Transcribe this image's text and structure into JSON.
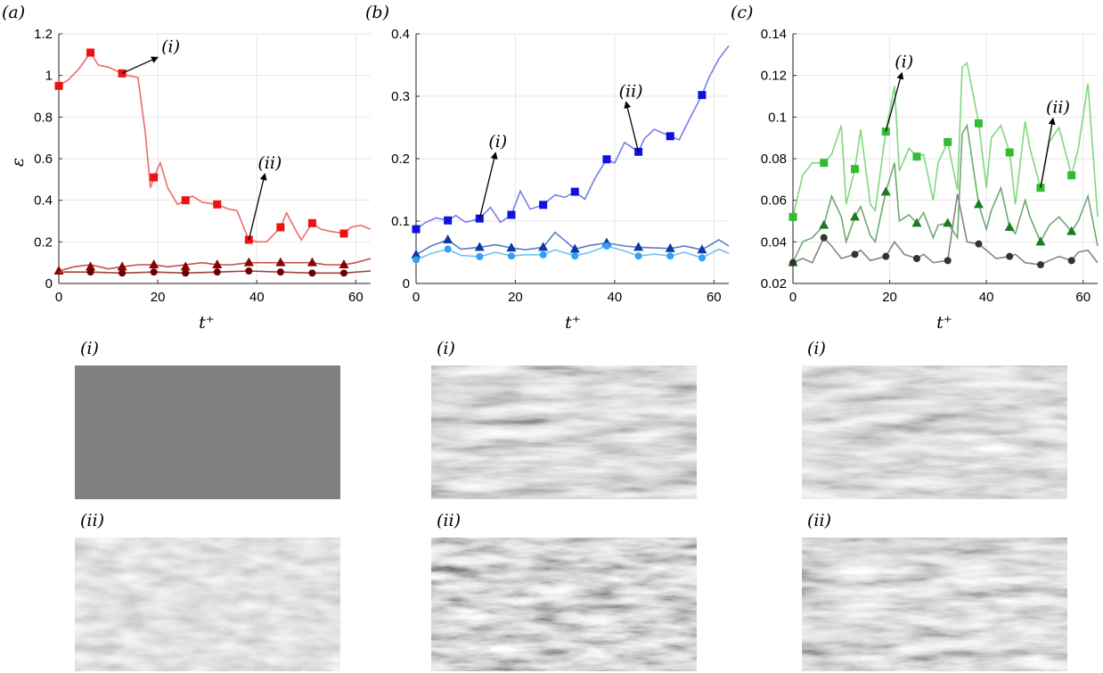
{
  "panels": [
    {
      "label": "(a)",
      "ylabel": "ε",
      "xlabel": "t⁺",
      "ylim": [
        0,
        1.2
      ],
      "yticks": [
        "0",
        "0.2",
        "0.4",
        "0.6",
        "0.8",
        "1",
        "1.2"
      ],
      "xlim": [
        0,
        63
      ],
      "xticks": [
        "0",
        "20",
        "40",
        "60"
      ],
      "annotations": [
        "(i)",
        "(ii)"
      ],
      "images": {
        "i_label": "(i)",
        "ii_label": "(ii)"
      }
    },
    {
      "label": "(b)",
      "ylabel": "",
      "xlabel": "t⁺",
      "ylim": [
        0,
        0.4
      ],
      "yticks": [
        "0",
        "0.1",
        "0.2",
        "0.3",
        "0.4"
      ],
      "xlim": [
        0,
        63
      ],
      "xticks": [
        "0",
        "20",
        "40",
        "60"
      ],
      "annotations": [
        "(i)",
        "(ii)"
      ],
      "images": {
        "i_label": "(i)",
        "ii_label": "(ii)"
      }
    },
    {
      "label": "(c)",
      "ylabel": "",
      "xlabel": "t⁺",
      "ylim": [
        0.02,
        0.14
      ],
      "yticks": [
        "0.02",
        "0.04",
        "0.06",
        "0.08",
        "0.1",
        "0.12",
        "0.14"
      ],
      "xlim": [
        0,
        63
      ],
      "xticks": [
        "0",
        "20",
        "40",
        "60"
      ],
      "annotations": [
        "(i)",
        "(ii)"
      ],
      "images": {
        "i_label": "(i)",
        "ii_label": "(ii)"
      }
    }
  ],
  "chart_data": [
    {
      "type": "line",
      "xlim": [
        0,
        63
      ],
      "ylim": [
        0,
        1.2
      ],
      "series": [
        {
          "marker": "square",
          "color": "#ee1111",
          "line_color": "#f06a6a",
          "x": [
            0,
            2,
            4,
            6.4,
            8,
            10,
            12.8,
            14,
            16,
            17.5,
            18.5,
            19.2,
            20.5,
            22,
            24,
            25.6,
            27,
            29,
            32,
            34,
            36,
            38.4,
            40,
            42,
            44.8,
            46,
            48,
            49,
            51.2,
            53,
            55,
            57.6,
            59,
            61,
            63
          ],
          "y": [
            0.95,
            0.98,
            1.03,
            1.11,
            1.05,
            1.04,
            1.01,
            1.0,
            0.99,
            0.72,
            0.46,
            0.51,
            0.58,
            0.46,
            0.38,
            0.4,
            0.42,
            0.39,
            0.38,
            0.36,
            0.35,
            0.21,
            0.2,
            0.2,
            0.27,
            0.34,
            0.25,
            0.21,
            0.29,
            0.26,
            0.25,
            0.24,
            0.27,
            0.28,
            0.26
          ],
          "marker_x": [
            0,
            6.4,
            12.8,
            19.2,
            25.6,
            32,
            38.4,
            44.8,
            51.2,
            57.6
          ],
          "marker_y": [
            0.95,
            1.11,
            1.01,
            0.51,
            0.4,
            0.38,
            0.21,
            0.27,
            0.29,
            0.24
          ]
        },
        {
          "marker": "triangle",
          "color": "#8b0000",
          "line_color": "#c05050",
          "x": [
            0,
            3,
            6.4,
            10,
            12.8,
            16,
            19.2,
            22,
            25.6,
            29,
            32,
            35,
            38.4,
            42,
            44.8,
            48,
            51.2,
            54,
            57.6,
            60,
            63
          ],
          "y": [
            0.06,
            0.08,
            0.09,
            0.07,
            0.08,
            0.09,
            0.09,
            0.08,
            0.09,
            0.1,
            0.09,
            0.09,
            0.1,
            0.1,
            0.1,
            0.1,
            0.1,
            0.09,
            0.09,
            0.1,
            0.12
          ],
          "marker_x": [
            0,
            6.4,
            12.8,
            19.2,
            25.6,
            32,
            38.4,
            44.8,
            51.2,
            57.6
          ],
          "marker_y": [
            0.06,
            0.08,
            0.08,
            0.09,
            0.08,
            0.09,
            0.1,
            0.1,
            0.1,
            0.09
          ]
        },
        {
          "marker": "circle",
          "color": "#6b0000",
          "line_color": "#a04040",
          "x": [
            0,
            6.4,
            12.8,
            19.2,
            25.6,
            32,
            38.4,
            44.8,
            51.2,
            57.6,
            63
          ],
          "y": [
            0.055,
            0.055,
            0.05,
            0.055,
            0.05,
            0.055,
            0.06,
            0.055,
            0.05,
            0.05,
            0.06
          ],
          "marker_x": [
            6.4,
            12.8,
            19.2,
            25.6,
            32,
            38.4,
            44.8,
            51.2,
            57.6
          ],
          "marker_y": [
            0.055,
            0.05,
            0.055,
            0.05,
            0.055,
            0.06,
            0.055,
            0.05,
            0.05
          ]
        }
      ],
      "annotations": [
        {
          "label": "(i)",
          "x": 12.8,
          "y": 1.01
        },
        {
          "label": "(ii)",
          "x": 38.4,
          "y": 0.21
        }
      ]
    },
    {
      "type": "line",
      "xlim": [
        0,
        63
      ],
      "ylim": [
        0,
        0.4
      ],
      "series": [
        {
          "marker": "square",
          "color": "#1010e0",
          "line_color": "#7a7aea",
          "x": [
            0,
            2,
            4,
            6.4,
            8,
            10,
            12.8,
            15,
            17,
            19.2,
            21,
            23,
            25.6,
            28,
            30,
            32,
            34,
            36,
            38.4,
            40,
            42,
            44.8,
            46,
            48,
            51.2,
            53,
            55,
            57.6,
            59,
            61,
            63
          ],
          "y": [
            0.087,
            0.098,
            0.105,
            0.101,
            0.109,
            0.098,
            0.104,
            0.122,
            0.098,
            0.11,
            0.148,
            0.119,
            0.126,
            0.142,
            0.138,
            0.147,
            0.135,
            0.168,
            0.199,
            0.193,
            0.226,
            0.211,
            0.232,
            0.247,
            0.236,
            0.23,
            0.262,
            0.302,
            0.33,
            0.36,
            0.381
          ],
          "marker_x": [
            0,
            6.4,
            12.8,
            19.2,
            25.6,
            32,
            38.4,
            44.8,
            51.2,
            57.6
          ],
          "marker_y": [
            0.087,
            0.101,
            0.104,
            0.11,
            0.126,
            0.147,
            0.199,
            0.211,
            0.236,
            0.302
          ]
        },
        {
          "marker": "triangle",
          "color": "#0a3aa8",
          "line_color": "#5a7ac8",
          "x": [
            0,
            3,
            6.4,
            9,
            12.8,
            16,
            19.2,
            22,
            25.6,
            28,
            32,
            35,
            38.4,
            42,
            44.8,
            48,
            51.2,
            54,
            57.6,
            61,
            63
          ],
          "y": [
            0.046,
            0.06,
            0.07,
            0.055,
            0.058,
            0.062,
            0.057,
            0.054,
            0.058,
            0.082,
            0.055,
            0.061,
            0.065,
            0.06,
            0.058,
            0.057,
            0.056,
            0.06,
            0.054,
            0.07,
            0.06
          ],
          "marker_x": [
            0,
            6.4,
            12.8,
            19.2,
            25.6,
            32,
            38.4,
            44.8,
            51.2,
            57.6
          ],
          "marker_y": [
            0.046,
            0.07,
            0.058,
            0.057,
            0.058,
            0.055,
            0.065,
            0.058,
            0.056,
            0.054
          ]
        },
        {
          "marker": "circle",
          "color": "#30a0f0",
          "line_color": "#70c0f5",
          "x": [
            0,
            3,
            6.4,
            9,
            12.8,
            16,
            19.2,
            22,
            25.6,
            28,
            32,
            35,
            38.4,
            42,
            44.8,
            48,
            51.2,
            54,
            57.6,
            61,
            63
          ],
          "y": [
            0.038,
            0.048,
            0.055,
            0.045,
            0.043,
            0.05,
            0.044,
            0.046,
            0.046,
            0.054,
            0.044,
            0.05,
            0.06,
            0.052,
            0.044,
            0.047,
            0.044,
            0.05,
            0.041,
            0.055,
            0.048
          ],
          "marker_x": [
            0,
            6.4,
            12.8,
            19.2,
            25.6,
            32,
            38.4,
            44.8,
            51.2,
            57.6
          ],
          "marker_y": [
            0.038,
            0.055,
            0.043,
            0.044,
            0.046,
            0.044,
            0.06,
            0.044,
            0.044,
            0.041
          ]
        }
      ],
      "annotations": [
        {
          "label": "(i)",
          "x": 12.8,
          "y": 0.104
        },
        {
          "label": "(ii)",
          "x": 44.8,
          "y": 0.211
        }
      ]
    },
    {
      "type": "line",
      "xlim": [
        0,
        63
      ],
      "ylim": [
        0.02,
        0.14
      ],
      "series": [
        {
          "marker": "square",
          "color": "#33bb33",
          "line_color": "#80d880",
          "x": [
            0,
            2,
            4,
            6.4,
            8,
            10,
            11,
            12.8,
            14,
            16,
            17,
            19.2,
            21,
            22,
            24,
            25.6,
            27,
            29,
            30,
            32,
            34,
            35,
            36,
            38.4,
            40,
            41,
            43,
            44.8,
            46,
            48,
            49,
            51.2,
            53,
            55,
            57.6,
            59,
            61,
            63
          ],
          "y": [
            0.052,
            0.072,
            0.078,
            0.078,
            0.082,
            0.096,
            0.058,
            0.075,
            0.094,
            0.058,
            0.055,
            0.093,
            0.115,
            0.074,
            0.085,
            0.081,
            0.082,
            0.06,
            0.078,
            0.088,
            0.065,
            0.124,
            0.126,
            0.097,
            0.066,
            0.09,
            0.096,
            0.083,
            0.058,
            0.098,
            0.085,
            0.066,
            0.088,
            0.095,
            0.072,
            0.085,
            0.116,
            0.052
          ],
          "marker_x": [
            0,
            6.4,
            12.8,
            19.2,
            25.6,
            32,
            38.4,
            44.8,
            51.2,
            57.6
          ],
          "marker_y": [
            0.052,
            0.078,
            0.075,
            0.093,
            0.081,
            0.088,
            0.097,
            0.083,
            0.066,
            0.072
          ]
        },
        {
          "marker": "triangle",
          "color": "#1f7a1f",
          "line_color": "#70a870",
          "x": [
            0,
            2,
            4,
            6.4,
            8,
            10,
            11,
            12.8,
            14,
            16,
            17,
            19.2,
            21,
            22,
            24,
            25.6,
            27,
            29,
            30,
            32,
            34,
            35,
            36,
            38.4,
            40,
            41,
            43,
            44.8,
            46,
            48,
            49,
            51.2,
            53,
            55,
            57.6,
            59,
            61,
            63
          ],
          "y": [
            0.03,
            0.04,
            0.042,
            0.048,
            0.062,
            0.052,
            0.04,
            0.052,
            0.057,
            0.043,
            0.04,
            0.064,
            0.078,
            0.05,
            0.053,
            0.049,
            0.054,
            0.042,
            0.048,
            0.049,
            0.042,
            0.092,
            0.096,
            0.058,
            0.046,
            0.055,
            0.066,
            0.047,
            0.044,
            0.06,
            0.052,
            0.04,
            0.048,
            0.052,
            0.045,
            0.05,
            0.062,
            0.038
          ],
          "marker_x": [
            0,
            6.4,
            12.8,
            19.2,
            25.6,
            32,
            38.4,
            44.8,
            51.2,
            57.6
          ],
          "marker_y": [
            0.03,
            0.048,
            0.052,
            0.064,
            0.049,
            0.049,
            0.058,
            0.047,
            0.04,
            0.045
          ]
        },
        {
          "marker": "circle",
          "color": "#2a3a2a",
          "line_color": "#808880",
          "x": [
            0,
            2,
            4,
            6.4,
            8,
            10,
            12.8,
            14,
            16,
            19.2,
            21,
            23,
            25.6,
            27,
            29,
            32,
            34,
            36,
            38.4,
            40,
            42,
            44.8,
            46,
            48,
            51.2,
            53,
            55,
            57.6,
            59,
            61,
            63
          ],
          "y": [
            0.03,
            0.032,
            0.03,
            0.042,
            0.038,
            0.032,
            0.034,
            0.036,
            0.031,
            0.033,
            0.04,
            0.034,
            0.032,
            0.034,
            0.03,
            0.031,
            0.063,
            0.04,
            0.039,
            0.036,
            0.032,
            0.033,
            0.034,
            0.03,
            0.029,
            0.031,
            0.033,
            0.031,
            0.035,
            0.036,
            0.03
          ],
          "marker_x": [
            0,
            6.4,
            12.8,
            19.2,
            25.6,
            32,
            38.4,
            44.8,
            51.2,
            57.6
          ],
          "marker_y": [
            0.03,
            0.042,
            0.034,
            0.033,
            0.032,
            0.031,
            0.039,
            0.033,
            0.029,
            0.031
          ]
        }
      ],
      "annotations": [
        {
          "label": "(i)",
          "x": 19.2,
          "y": 0.093
        },
        {
          "label": "(ii)",
          "x": 51.2,
          "y": 0.066
        }
      ]
    }
  ]
}
